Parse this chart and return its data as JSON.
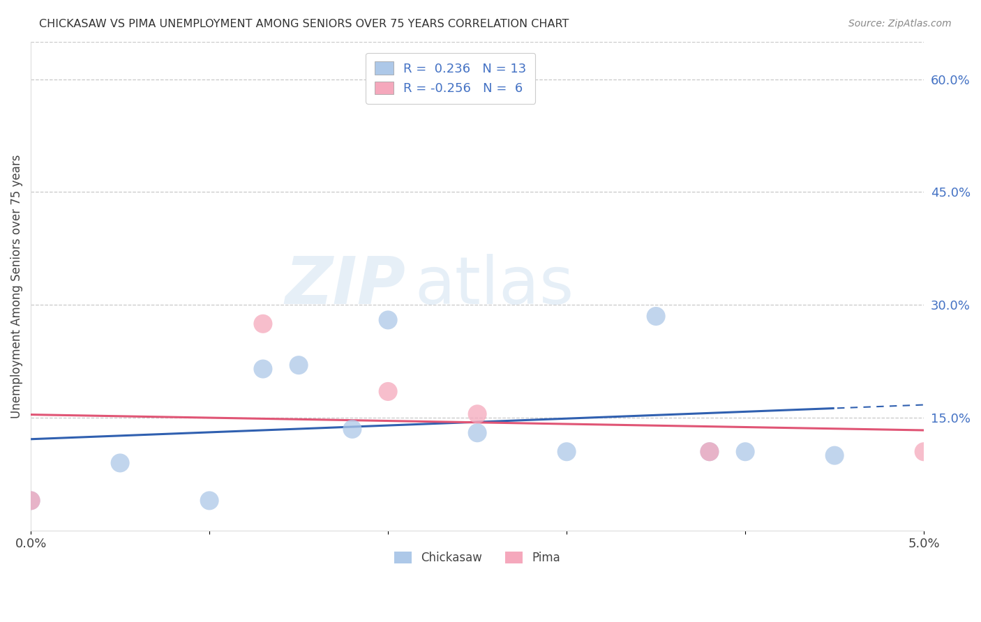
{
  "title": "CHICKASAW VS PIMA UNEMPLOYMENT AMONG SENIORS OVER 75 YEARS CORRELATION CHART",
  "source": "Source: ZipAtlas.com",
  "ylabel": "Unemployment Among Seniors over 75 years",
  "xlim": [
    0.0,
    0.05
  ],
  "ylim": [
    0.0,
    0.65
  ],
  "xticks": [
    0.0,
    0.01,
    0.02,
    0.03,
    0.04,
    0.05
  ],
  "xtick_labels": [
    "0.0%",
    "",
    "",
    "",
    "",
    "5.0%"
  ],
  "ytick_labels_right": [
    "15.0%",
    "30.0%",
    "45.0%",
    "60.0%"
  ],
  "ytick_vals_right": [
    0.15,
    0.3,
    0.45,
    0.6
  ],
  "chickasaw_color": "#adc8e8",
  "pima_color": "#f5a8bc",
  "chickasaw_line_color": "#3060b0",
  "pima_line_color": "#e05575",
  "R_chickasaw": 0.236,
  "N_chickasaw": 13,
  "R_pima": -0.256,
  "N_pima": 6,
  "chickasaw_x": [
    0.0,
    0.005,
    0.01,
    0.013,
    0.015,
    0.018,
    0.02,
    0.025,
    0.03,
    0.035,
    0.038,
    0.04,
    0.045
  ],
  "chickasaw_y": [
    0.04,
    0.09,
    0.04,
    0.215,
    0.22,
    0.135,
    0.28,
    0.13,
    0.105,
    0.285,
    0.105,
    0.105,
    0.1
  ],
  "pima_x": [
    0.0,
    0.013,
    0.02,
    0.025,
    0.038,
    0.05
  ],
  "pima_y": [
    0.04,
    0.275,
    0.185,
    0.155,
    0.105,
    0.105
  ],
  "chickasaw_line_solid_end": 0.03,
  "pima_line_solid_end": 0.05,
  "watermark_zip": "ZIP",
  "watermark_atlas": "atlas",
  "background_color": "#ffffff",
  "grid_color": "#c8c8c8"
}
